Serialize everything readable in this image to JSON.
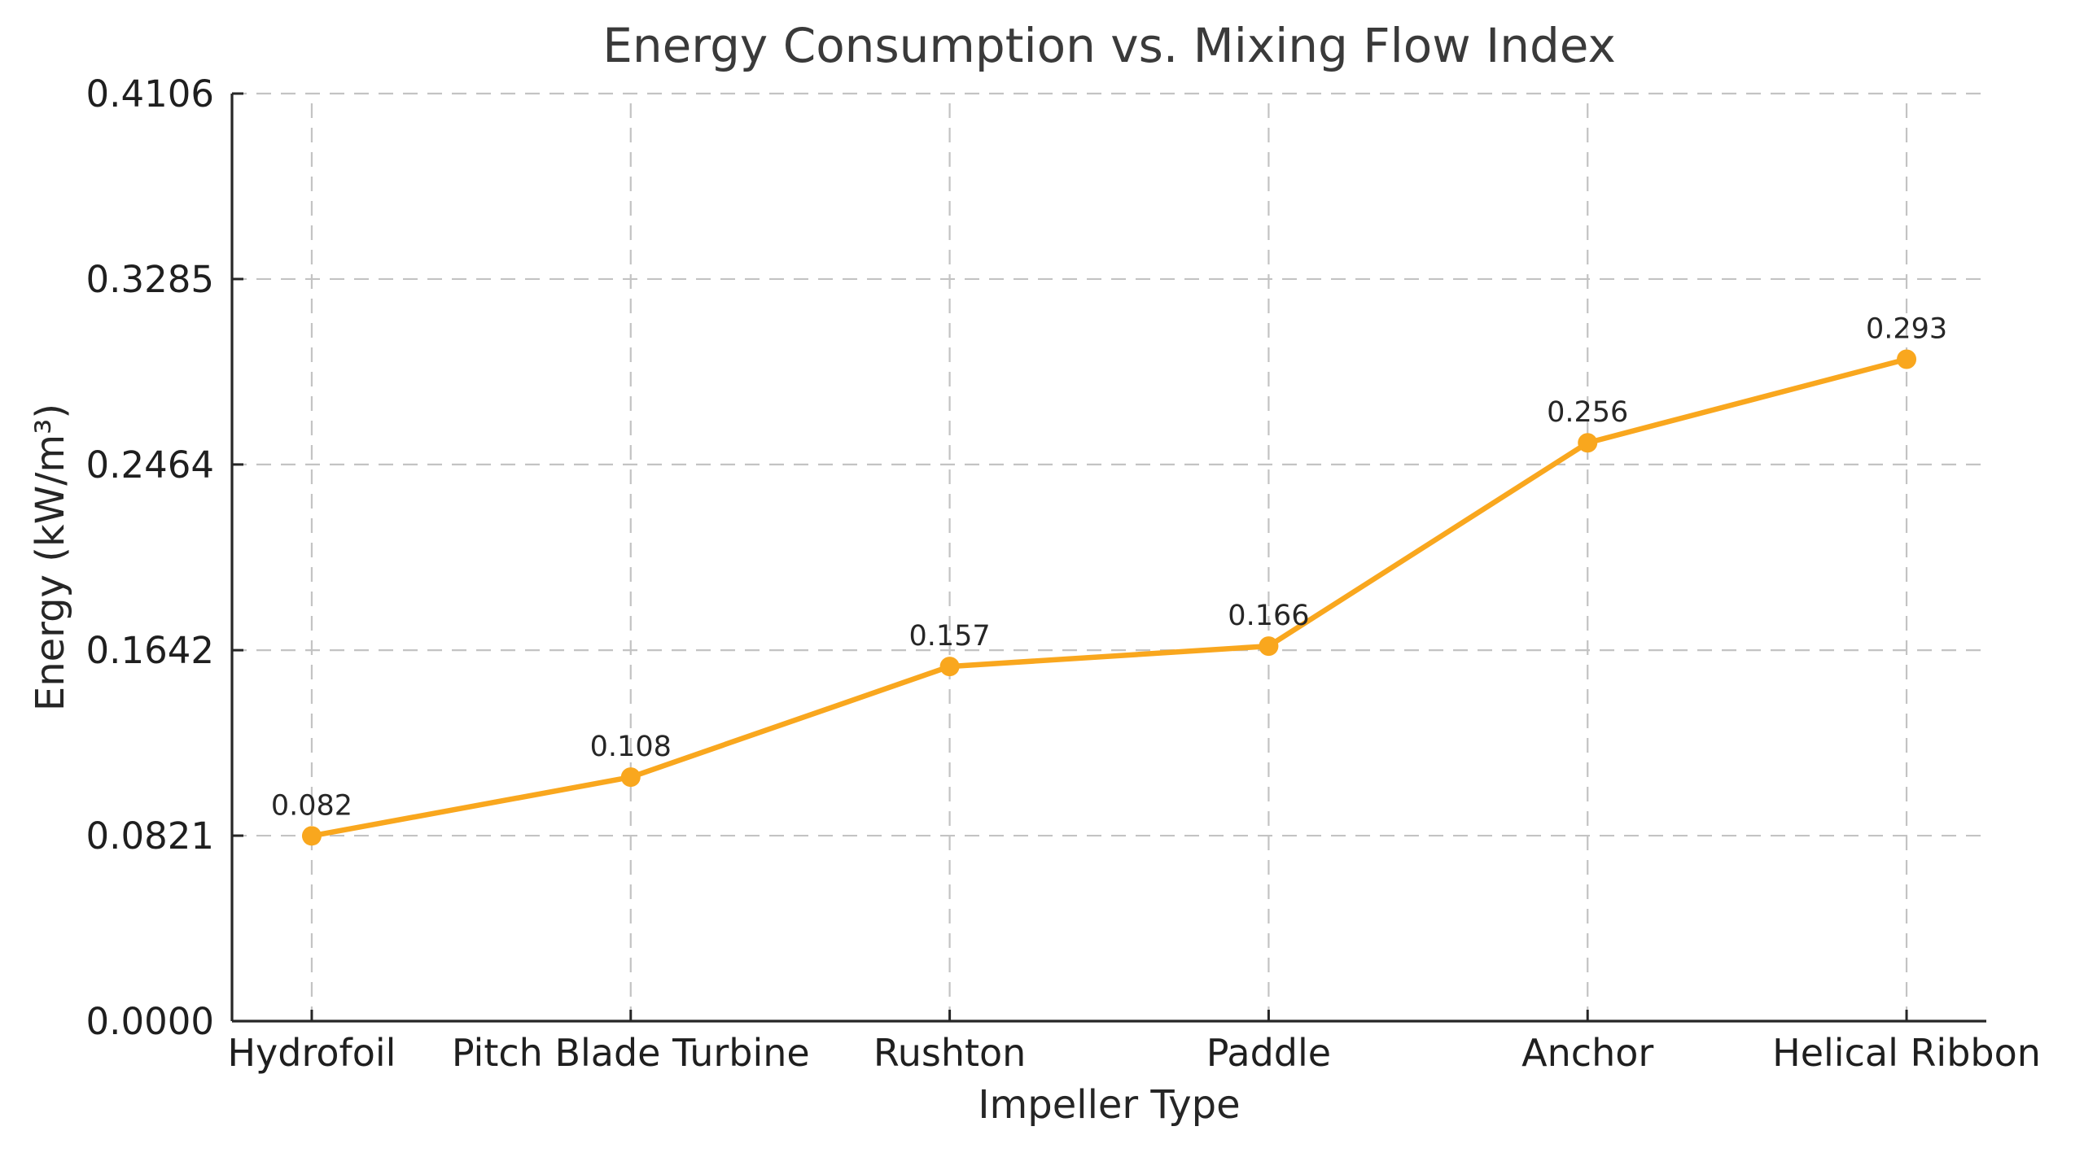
{
  "figure": {
    "background": "#ffffff"
  },
  "chart_data": {
    "type": "line",
    "title": "Energy Consumption vs. Mixing Flow Index",
    "xlabel": "Impeller Type",
    "ylabel": "Energy (kW/m³)",
    "categories": [
      "Hydrofoil",
      "Pitch Blade Turbine",
      "Rushton",
      "Paddle",
      "Anchor",
      "Helical Ribbon"
    ],
    "values": [
      0.082,
      0.108,
      0.157,
      0.166,
      0.256,
      0.293
    ],
    "point_labels": [
      "0.082",
      "0.108",
      "0.157",
      "0.166",
      "0.256",
      "0.293"
    ],
    "yticks": [
      0.0,
      0.0821,
      0.1642,
      0.2464,
      0.3285,
      0.4106
    ],
    "ytick_labels": [
      "0.0000",
      "0.0821",
      "0.1642",
      "0.2464",
      "0.3285",
      "0.4106"
    ],
    "ylim": [
      0,
      0.4106
    ],
    "grid": true,
    "grid_style": "dashed",
    "legend": null,
    "colors": {
      "line": "#F9A71E",
      "marker": "#F9A71E",
      "grid": "#c3c3c3",
      "axis": "#262626",
      "tick_text": "#1f1f1f",
      "title_text": "#3a3a3a",
      "annotation_text": "#262626"
    }
  }
}
